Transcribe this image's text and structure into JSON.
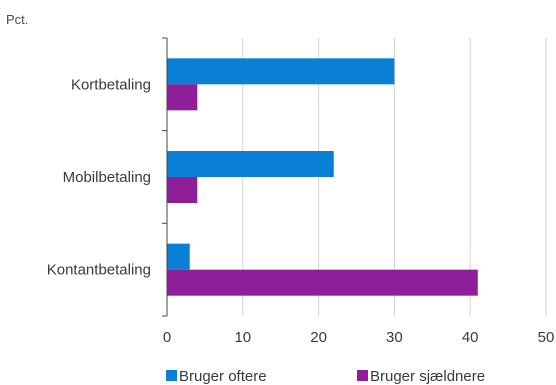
{
  "chart_data": {
    "type": "bar",
    "orientation": "horizontal",
    "ylabel": "Pct.",
    "categories": [
      "Kortbetaling",
      "Mobilbetaling",
      "Kontantbetaling"
    ],
    "series": [
      {
        "name": "Bruger oftere",
        "color": "#0a7fd6",
        "values": [
          30,
          22,
          3
        ]
      },
      {
        "name": "Bruger sjældnere",
        "color": "#8e1f98",
        "values": [
          4,
          4,
          41
        ]
      }
    ],
    "xlim": [
      0,
      50
    ],
    "xticks": [
      "0",
      "10",
      "20",
      "30",
      "40",
      "50"
    ],
    "grid": "vertical",
    "legend_position": "bottom"
  }
}
